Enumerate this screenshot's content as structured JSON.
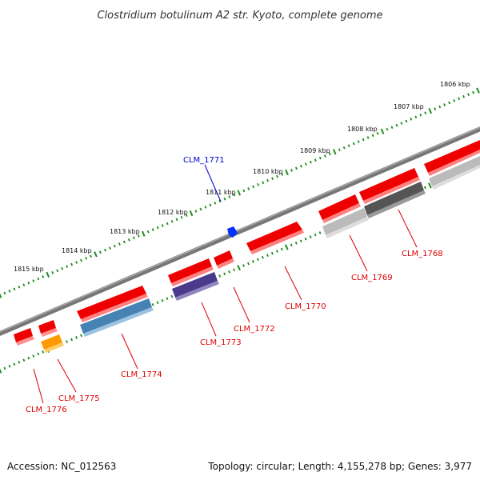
{
  "title": "Clostridium botulinum A2 str. Kyoto, complete genome",
  "footer": {
    "accession": "Accession: NC_012563",
    "summary": "Topology: circular; Length: 4,155,278 bp; Genes: 3,977"
  },
  "colors": {
    "background": "#ffffff",
    "backbone": "#777777",
    "tick": "#1e8c1e",
    "gene_red": "#ee0000",
    "label_red": "#dd0000",
    "label_blue": "#0000cc",
    "gene_blue": "#4682b4",
    "gene_purple": "#4b3a8c",
    "gene_orange": "#ff9900",
    "gene_lightgray": "#bbbbbb",
    "gene_darkgray": "#555555",
    "marker_blue": "#0033ff"
  },
  "ruler": {
    "unit": "kbp",
    "labels": [
      "1806 kbp",
      "1807 kbp",
      "1808 kbp",
      "1809 kbp",
      "1810 kbp",
      "1811 kbp",
      "1812 kbp",
      "1813 kbp",
      "1814 kbp",
      "1815 kbp"
    ]
  },
  "gene_labels": [
    {
      "id": "g1771",
      "text": "CLM_1771",
      "color": "blue"
    },
    {
      "id": "g1768",
      "text": "CLM_1768",
      "color": "red"
    },
    {
      "id": "g1769",
      "text": "CLM_1769",
      "color": "red"
    },
    {
      "id": "g1770",
      "text": "CLM_1770",
      "color": "red"
    },
    {
      "id": "g1772",
      "text": "CLM_1772",
      "color": "red"
    },
    {
      "id": "g1773",
      "text": "CLM_1773",
      "color": "red"
    },
    {
      "id": "g1774",
      "text": "CLM_1774",
      "color": "red"
    },
    {
      "id": "g1775",
      "text": "CLM_1775",
      "color": "red"
    },
    {
      "id": "g1776",
      "text": "CLM_1776",
      "color": "red"
    }
  ],
  "features": [
    {
      "id": "f-r1",
      "track": "outer",
      "color": "gene_red"
    },
    {
      "id": "f-r2",
      "track": "outer",
      "color": "gene_red"
    },
    {
      "id": "f-r3",
      "track": "outer",
      "color": "gene_red"
    },
    {
      "id": "f-r4",
      "track": "outer",
      "color": "gene_red"
    },
    {
      "id": "f-r5",
      "track": "outer",
      "color": "gene_red"
    },
    {
      "id": "f-r6",
      "track": "outer",
      "color": "gene_red"
    },
    {
      "id": "f-r7",
      "track": "outer",
      "color": "gene_red"
    },
    {
      "id": "f-r8",
      "track": "outer",
      "color": "gene_red"
    },
    {
      "id": "f-r9",
      "track": "outer",
      "color": "gene_red"
    },
    {
      "id": "f-r10",
      "track": "outer",
      "color": "gene_red"
    },
    {
      "id": "f-lg1",
      "track": "inner",
      "color": "gene_lightgray"
    },
    {
      "id": "f-dg",
      "track": "inner",
      "color": "gene_darkgray"
    },
    {
      "id": "f-lg2",
      "track": "inner",
      "color": "gene_lightgray"
    },
    {
      "id": "f-pu",
      "track": "inner",
      "color": "gene_purple"
    },
    {
      "id": "f-bl",
      "track": "inner",
      "color": "gene_blue"
    },
    {
      "id": "f-or",
      "track": "inner",
      "color": "gene_orange"
    }
  ]
}
